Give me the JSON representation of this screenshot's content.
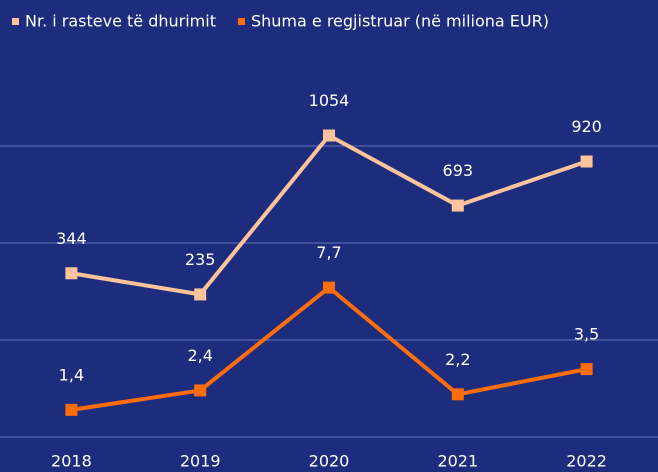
{
  "chart_data": {
    "type": "line",
    "categories": [
      "2018",
      "2019",
      "2020",
      "2021",
      "2022"
    ],
    "series": [
      {
        "name": "Nr. i rasteve të dhurimit",
        "color": "#ffc49b",
        "values": [
          344,
          235,
          1054,
          693,
          920
        ]
      },
      {
        "name": "Shuma e regjistruar (në miliona EUR)",
        "color": "#ff6d0a",
        "axis": "y2",
        "values": [
          1.4,
          2.4,
          7.7,
          2.2,
          3.5
        ],
        "value_labels": [
          "1,4",
          "2,4",
          "7,7",
          "2,2",
          "3,5"
        ]
      }
    ],
    "ylim": [
      -500,
      1500
    ],
    "yticks": [
      -500,
      0,
      500,
      1000
    ],
    "y2lim": [
      0,
      20
    ],
    "grid": true,
    "legend": "top-left"
  }
}
